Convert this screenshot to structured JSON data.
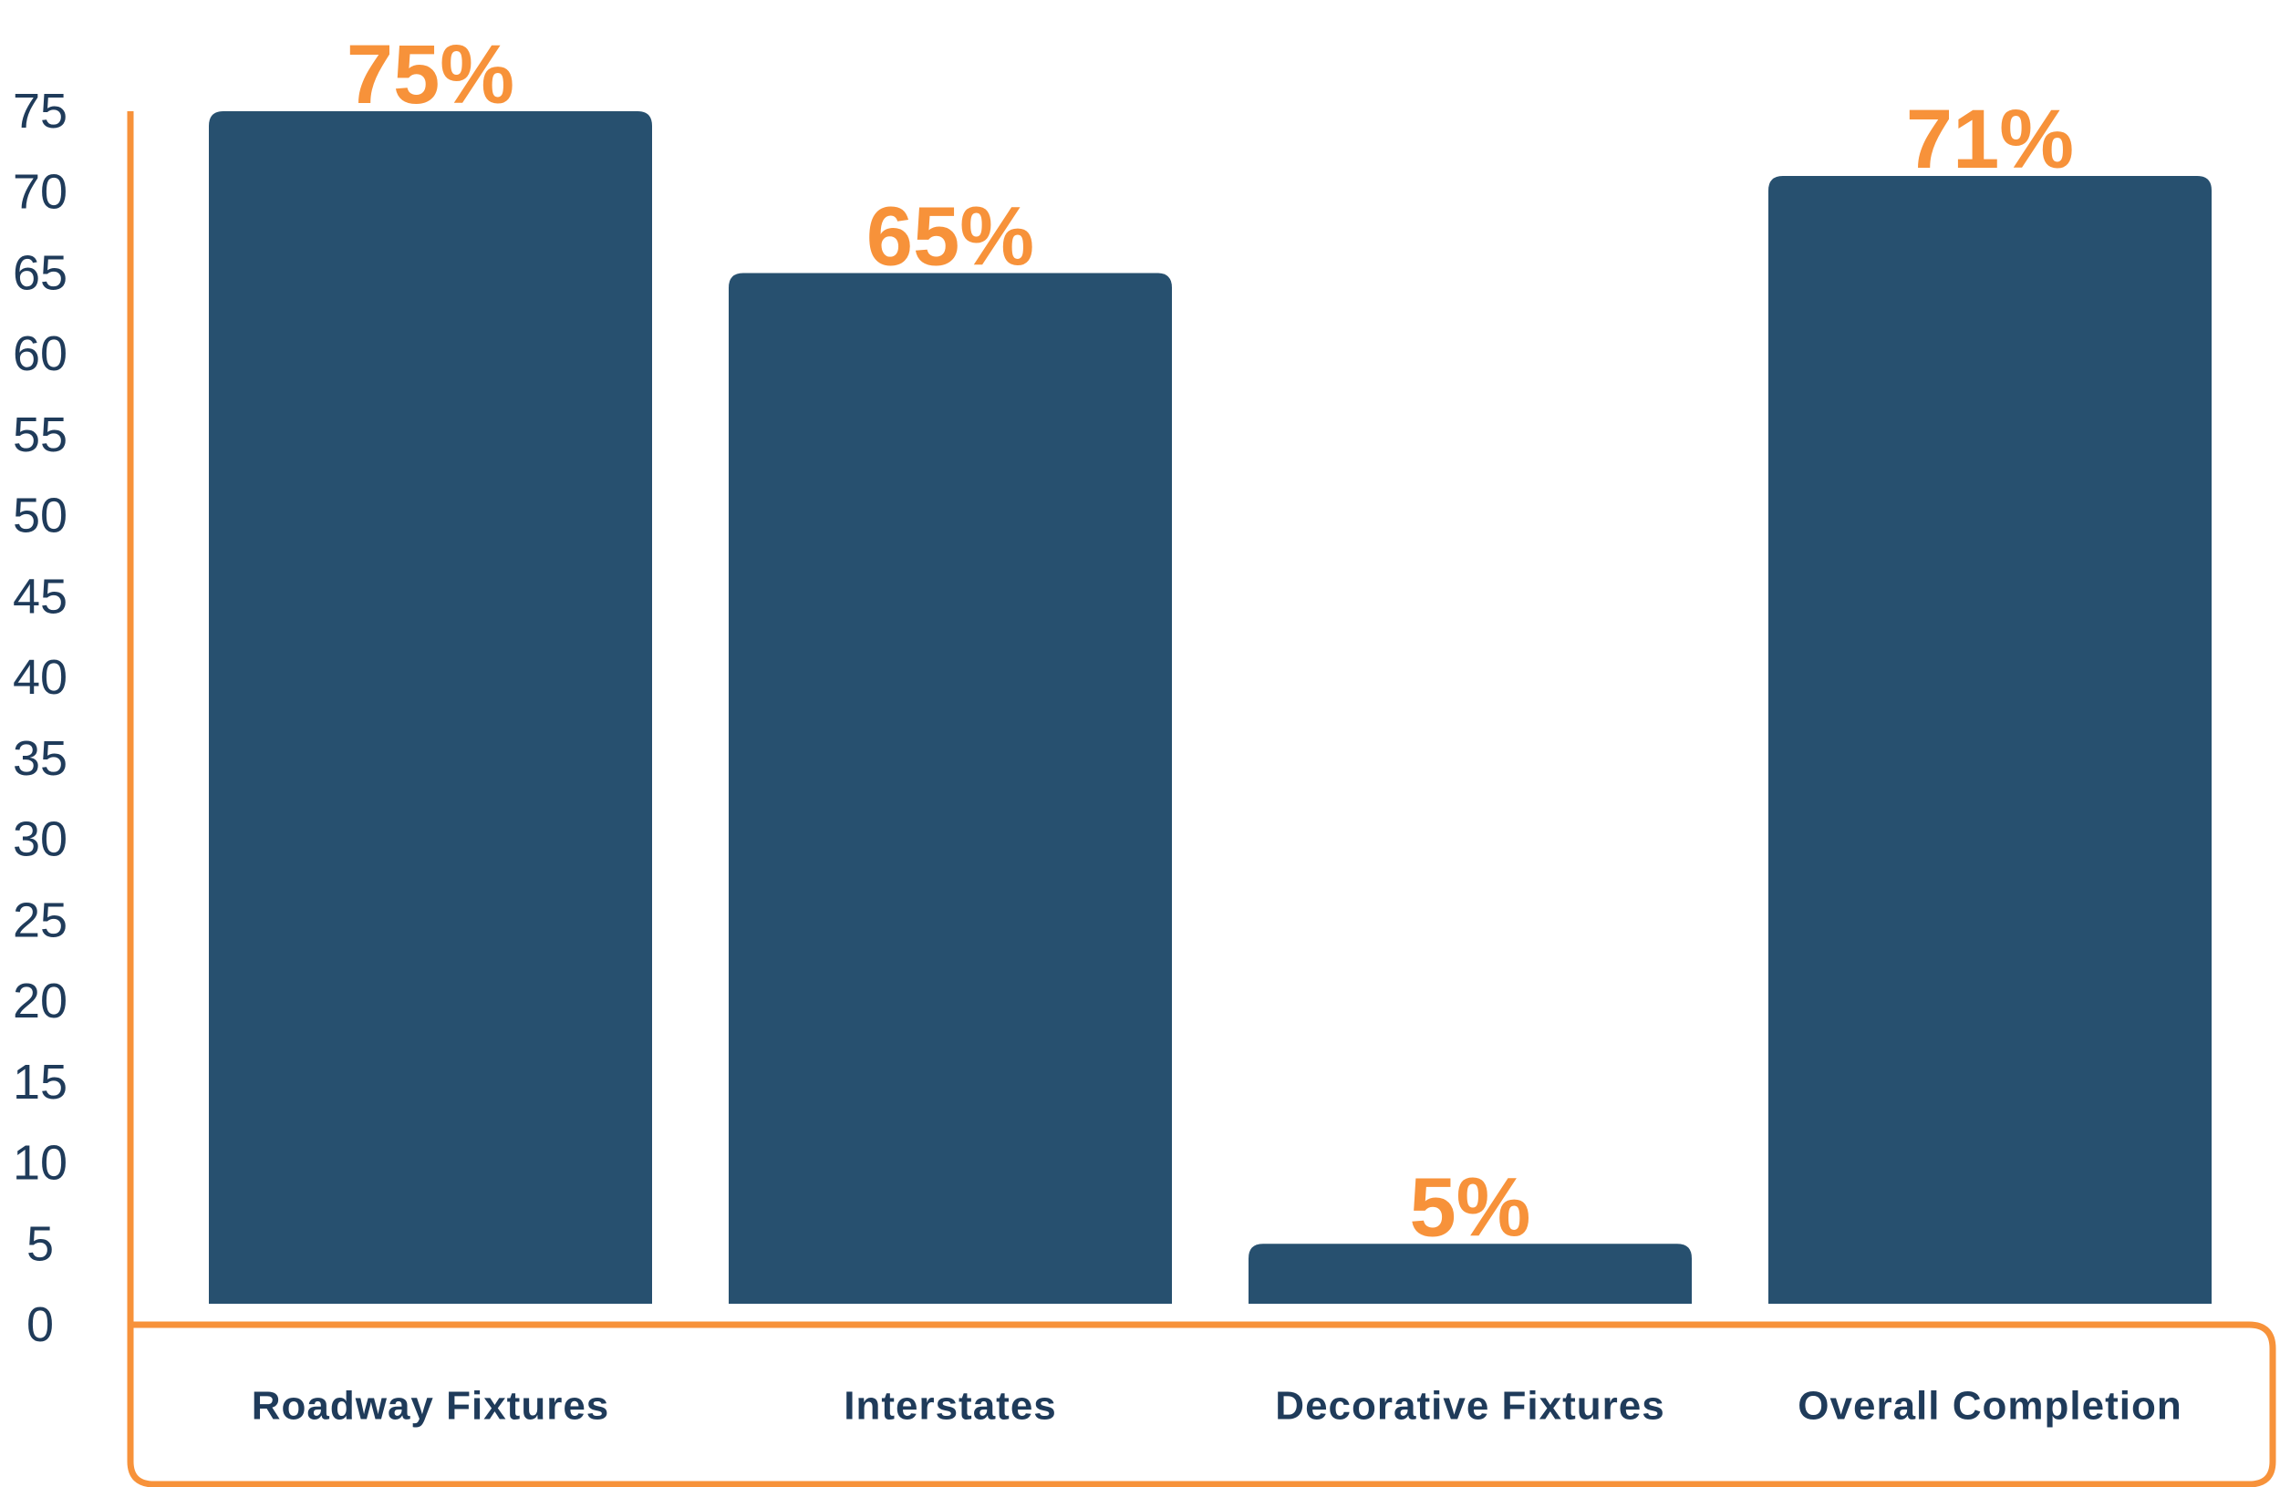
{
  "chart_data": {
    "type": "bar",
    "categories": [
      "Roadway Fixtures",
      "Interstates",
      "Decorative Fixtures",
      "Overall Completion"
    ],
    "values": [
      75,
      65,
      5,
      71
    ],
    "data_labels": [
      "75%",
      "65%",
      "5%",
      "71%"
    ],
    "title": "",
    "xlabel": "",
    "ylabel": "",
    "ylim": [
      0,
      75
    ],
    "yticks": [
      "0",
      "5",
      "10",
      "15",
      "20",
      "25",
      "30",
      "35",
      "40",
      "45",
      "50",
      "55",
      "60",
      "65",
      "70",
      "75"
    ],
    "grid": false,
    "legend": "none",
    "colors": {
      "bar": "#27506f",
      "accent": "#f7923a",
      "text": "#1f3b5a"
    }
  }
}
